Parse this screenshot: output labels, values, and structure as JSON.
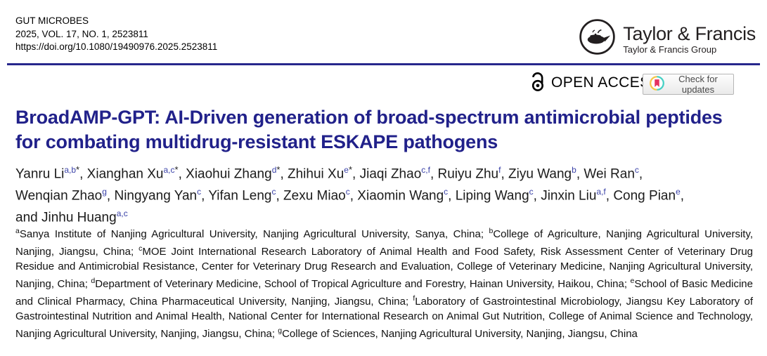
{
  "colors": {
    "title_navy": "#21218a",
    "rule_navy": "#27278c",
    "superscript_blue": "#3a42a8",
    "crossmark_red": "#e5305f",
    "crossmark_yellow": "#f7c648",
    "crossmark_teal": "#45d0c4"
  },
  "journal": {
    "name": "GUT MICROBES",
    "issue_line": "2025, VOL. 17, NO. 1, 2523811",
    "doi": "https://doi.org/10.1080/19490976.2025.2523811"
  },
  "publisher": {
    "name": "Taylor & Francis",
    "group": "Taylor & Francis Group"
  },
  "badges": {
    "open_access": "OPEN ACCESS",
    "check_updates": "Check for updates"
  },
  "article": {
    "title_line1": "BroadAMP-GPT: AI-Driven generation of broad-spectrum antimicrobial peptides",
    "title_line2": "for combating multidrug-resistant ESKAPE pathogens",
    "author_lines": [
      {
        "prefix": "",
        "trailing_comma": true,
        "authors": [
          {
            "name": "Yanru Li",
            "sup": "a,b",
            "star": true
          },
          {
            "name": "Xianghan Xu",
            "sup": "a,c",
            "star": true
          },
          {
            "name": "Xiaohui Zhang",
            "sup": "d",
            "star": true
          },
          {
            "name": "Zhihui Xu",
            "sup": "e",
            "star": true
          },
          {
            "name": "Jiaqi Zhao",
            "sup": "c,f",
            "star": false
          },
          {
            "name": "Ruiyu Zhu",
            "sup": "f",
            "star": false
          },
          {
            "name": "Ziyu Wang",
            "sup": "b",
            "star": false
          },
          {
            "name": "Wei Ran",
            "sup": "c",
            "star": false
          }
        ]
      },
      {
        "prefix": "",
        "trailing_comma": true,
        "authors": [
          {
            "name": "Wenqian Zhao",
            "sup": "g",
            "star": false
          },
          {
            "name": "Ningyang Yan",
            "sup": "c",
            "star": false
          },
          {
            "name": "Yifan Leng",
            "sup": "c",
            "star": false
          },
          {
            "name": "Zexu Miao",
            "sup": "c",
            "star": false
          },
          {
            "name": "Xiaomin Wang",
            "sup": "c",
            "star": false
          },
          {
            "name": "Liping Wang",
            "sup": "c",
            "star": false
          },
          {
            "name": "Jinxin Liu",
            "sup": "a,f",
            "star": false
          },
          {
            "name": "Cong Pian",
            "sup": "e",
            "star": false
          }
        ]
      },
      {
        "prefix": "and ",
        "trailing_comma": false,
        "authors": [
          {
            "name": "Jinhu Huang",
            "sup": "a,c",
            "star": false
          }
        ]
      }
    ],
    "affiliations": [
      {
        "label": "a",
        "text": "Sanya Institute of Nanjing Agricultural University, Nanjing Agricultural University, Sanya, China"
      },
      {
        "label": "b",
        "text": "College of Agriculture, Nanjing Agricultural University, Nanjing, Jiangsu, China"
      },
      {
        "label": "c",
        "text": "MOE Joint International Research Laboratory of Animal Health and Food Safety, Risk Assessment Center of Veterinary Drug Residue and Antimicrobial Resistance, Center for Veterinary Drug Research and Evaluation, College of Veterinary Medicine, Nanjing Agricultural University, Nanjing, China"
      },
      {
        "label": "d",
        "text": "Department of Veterinary Medicine, School of Tropical Agriculture and Forestry, Hainan University, Haikou, China"
      },
      {
        "label": "e",
        "text": "School of Basic Medicine and Clinical Pharmacy, China Pharmaceutical University, Nanjing, Jiangsu, China"
      },
      {
        "label": "f",
        "text": "Laboratory of Gastrointestinal Microbiology, Jiangsu Key Laboratory of Gastrointestinal Nutrition and Animal Health, National Center for International Research on Animal Gut Nutrition, College of Animal Science and Technology, Nanjing Agricultural University, Nanjing, Jiangsu, China"
      },
      {
        "label": "g",
        "text": "College of Sciences, Nanjing Agricultural University, Nanjing, Jiangsu, China"
      }
    ]
  }
}
